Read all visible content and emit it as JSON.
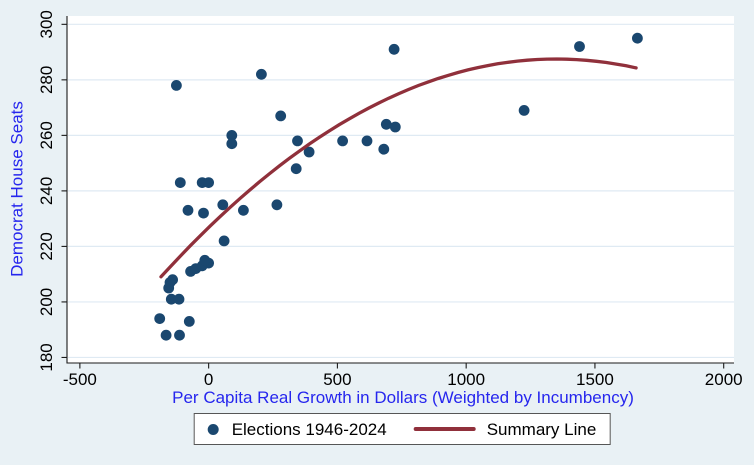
{
  "chart_data": {
    "type": "scatter",
    "title": "",
    "xlabel": "Per Capita Real Growth in Dollars (Weighted by Incumbency)",
    "ylabel": "Democrat House Seats",
    "xlim": [
      -550,
      2040
    ],
    "ylim": [
      178,
      303
    ],
    "x_ticks": [
      -500,
      0,
      500,
      1000,
      1500,
      2000
    ],
    "y_ticks": [
      180,
      200,
      220,
      240,
      260,
      280,
      300
    ],
    "grid": "horizontal-only",
    "y_tick_label_angle": -90,
    "legend": [
      "Elections 1946-2024",
      "Summary Line"
    ],
    "legend_position": "bottom-center",
    "series": [
      {
        "name": "Elections 1946-2024",
        "kind": "scatter",
        "color": "#1a476f",
        "points": [
          [
            -190,
            194
          ],
          [
            -165,
            188
          ],
          [
            -113,
            188
          ],
          [
            -75,
            193
          ],
          [
            -145,
            201
          ],
          [
            -115,
            201
          ],
          [
            -155,
            205
          ],
          [
            -150,
            207
          ],
          [
            -140,
            208
          ],
          [
            -70,
            211
          ],
          [
            -50,
            212
          ],
          [
            -25,
            213
          ],
          [
            0,
            214
          ],
          [
            -15,
            215
          ],
          [
            60,
            222
          ],
          [
            -80,
            233
          ],
          [
            -20,
            232
          ],
          [
            55,
            235
          ],
          [
            135,
            233
          ],
          [
            265,
            235
          ],
          [
            -110,
            243
          ],
          [
            -25,
            243
          ],
          [
            0,
            243
          ],
          [
            -125,
            278
          ],
          [
            205,
            282
          ],
          [
            280,
            267
          ],
          [
            90,
            260
          ],
          [
            90,
            257
          ],
          [
            345,
            258
          ],
          [
            390,
            254
          ],
          [
            340,
            248
          ],
          [
            520,
            258
          ],
          [
            615,
            258
          ],
          [
            680,
            255
          ],
          [
            690,
            264
          ],
          [
            725,
            263
          ],
          [
            720,
            291
          ],
          [
            1225,
            269
          ],
          [
            1440,
            292
          ],
          [
            1665,
            295
          ]
        ]
      },
      {
        "name": "Summary Line",
        "kind": "quadratic_fit",
        "color": "#90303b",
        "x_start": -185,
        "x_end": 1660,
        "vertex_x": 1350,
        "vertex_y": 287.5,
        "a": -3.33e-05
      }
    ],
    "colors": {
      "axis_title": "#2626ee",
      "tick_label": "#000000",
      "plot_background": "#ffffff",
      "figure_background": "#e9f1f5",
      "gridline": "#dfeaf3",
      "axis_line": "#1a1a1a",
      "legend_border": "#565656",
      "legend_background": "#ffffff",
      "legend_text": "#000000"
    }
  }
}
